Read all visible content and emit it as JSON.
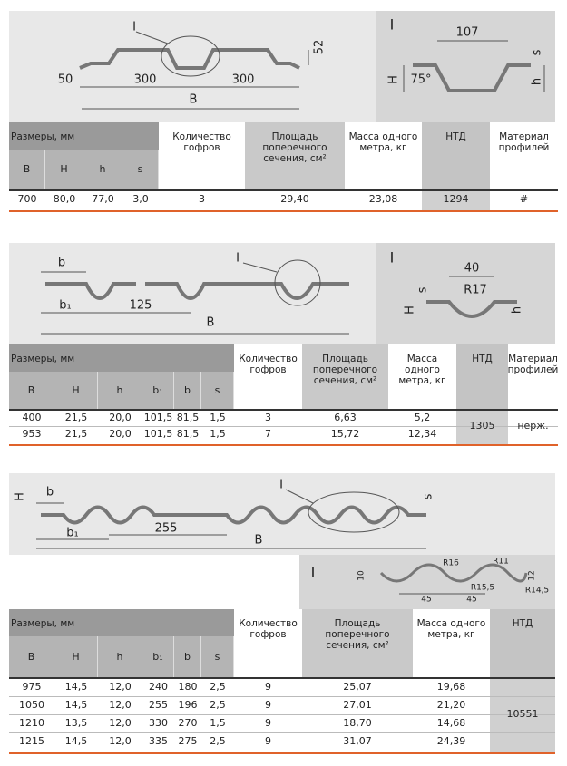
{
  "sections": [
    {
      "drawing": {
        "labels": [
          "I",
          "52",
          "50",
          "300",
          "300",
          "B"
        ]
      },
      "detail": {
        "labels": [
          "I",
          "107",
          "s",
          "H",
          "75°",
          "h"
        ]
      },
      "table": {
        "dims_title": "Размеры, мм",
        "dims": [
          "B",
          "H",
          "h",
          "s"
        ],
        "headers": [
          "Количество гофров",
          "Площадь поперечного сечения, см²",
          "Масса одного метра, кг",
          "НТД",
          "Материал профилей"
        ],
        "rows": [
          [
            "700",
            "80,0",
            "77,0",
            "3,0",
            "3",
            "29,40",
            "23,08",
            "1294",
            "#"
          ]
        ]
      }
    },
    {
      "drawing": {
        "labels": [
          "b",
          "I",
          "b₁",
          "125",
          "B"
        ]
      },
      "detail": {
        "labels": [
          "I",
          "40",
          "s",
          "R17",
          "H",
          "h"
        ]
      },
      "table": {
        "dims_title": "Размеры, мм",
        "dims": [
          "B",
          "H",
          "h",
          "b₁",
          "b",
          "s"
        ],
        "headers": [
          "Количество гофров",
          "Площадь поперечного сечения, см²",
          "Масса одного метра, кг",
          "НТД",
          "Материал профилей"
        ],
        "rows": [
          [
            "400",
            "21,5",
            "20,0",
            "101,5",
            "81,5",
            "1,5",
            "3",
            "6,63",
            "5,2"
          ],
          [
            "953",
            "21,5",
            "20,0",
            "101,5",
            "81,5",
            "1,5",
            "7",
            "15,72",
            "12,34"
          ]
        ],
        "ntd": "1305",
        "material": "нерж."
      }
    },
    {
      "drawing": {
        "labels": [
          "H",
          "b",
          "I",
          "s",
          "b₁",
          "255",
          "B"
        ]
      },
      "detail": {
        "labels": [
          "I",
          "10",
          "R16",
          "R11",
          "R15,5",
          "12",
          "R14,5",
          "45",
          "45"
        ]
      },
      "table": {
        "dims_title": "Размеры, мм",
        "dims": [
          "B",
          "H",
          "h",
          "b₁",
          "b",
          "s"
        ],
        "headers": [
          "Количество гофров",
          "Площадь поперечного сечения, см²",
          "Масса одного метра, кг",
          "НТД"
        ],
        "rows": [
          [
            "975",
            "14,5",
            "12,0",
            "240",
            "180",
            "2,5",
            "9",
            "25,07",
            "19,68"
          ],
          [
            "1050",
            "14,5",
            "12,0",
            "255",
            "196",
            "2,5",
            "9",
            "27,01",
            "21,20"
          ],
          [
            "1210",
            "13,5",
            "12,0",
            "330",
            "270",
            "1,5",
            "9",
            "18,70",
            "14,68"
          ],
          [
            "1215",
            "14,5",
            "12,0",
            "335",
            "275",
            "2,5",
            "9",
            "31,07",
            "24,39"
          ]
        ],
        "ntd": "10551"
      }
    }
  ]
}
